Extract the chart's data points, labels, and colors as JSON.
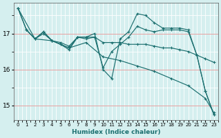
{
  "xlabel": "Humidex (Indice chaleur)",
  "bg_color": "#d5efef",
  "grid_color_major": "#f0c8c8",
  "grid_color_minor": "#ffffff",
  "line_color": "#1a6e6e",
  "xlim": [
    -0.5,
    23.5
  ],
  "ylim": [
    14.6,
    17.85
  ],
  "yticks": [
    15,
    16,
    17
  ],
  "xticks": [
    0,
    1,
    2,
    3,
    4,
    5,
    6,
    7,
    8,
    9,
    10,
    11,
    12,
    13,
    14,
    15,
    16,
    17,
    18,
    19,
    20,
    21,
    22,
    23
  ],
  "lines": [
    {
      "x": [
        0,
        1,
        2,
        3,
        4,
        5,
        6,
        7,
        8,
        9,
        10,
        11,
        12,
        13,
        14,
        15,
        16,
        17,
        18,
        19,
        20,
        21,
        22,
        23
      ],
      "y": [
        17.7,
        17.1,
        16.85,
        17.05,
        16.8,
        16.7,
        16.6,
        16.9,
        16.9,
        17.0,
        16.0,
        15.75,
        16.85,
        17.05,
        17.55,
        17.5,
        17.3,
        17.15,
        17.15,
        17.15,
        17.1,
        16.4,
        15.4,
        14.75
      ]
    },
    {
      "x": [
        0,
        1,
        2,
        3,
        4,
        5,
        6,
        7,
        8,
        9,
        10,
        11,
        12,
        13,
        14,
        15,
        16,
        17,
        18,
        19,
        20,
        21,
        22,
        23
      ],
      "y": [
        17.7,
        17.1,
        16.85,
        17.05,
        16.8,
        16.75,
        16.65,
        16.9,
        16.9,
        16.9,
        16.75,
        16.75,
        16.75,
        16.7,
        16.7,
        16.7,
        16.65,
        16.6,
        16.6,
        16.55,
        16.5,
        16.4,
        16.3,
        16.2
      ]
    },
    {
      "x": [
        1,
        2,
        3,
        4,
        5,
        6,
        7,
        8,
        9,
        10,
        11,
        12,
        13,
        14,
        15,
        16,
        17,
        18,
        19,
        20,
        21,
        22,
        23
      ],
      "y": [
        17.1,
        16.85,
        17.0,
        16.8,
        16.7,
        16.55,
        16.9,
        16.85,
        16.9,
        16.05,
        16.5,
        16.7,
        16.9,
        17.2,
        17.1,
        17.05,
        17.1,
        17.1,
        17.1,
        17.05,
        16.4,
        15.4,
        14.75
      ]
    },
    {
      "x": [
        0,
        2,
        4,
        6,
        8,
        10,
        12,
        14,
        16,
        18,
        20,
        22,
        23
      ],
      "y": [
        17.7,
        16.85,
        16.8,
        16.6,
        16.75,
        16.35,
        16.25,
        16.1,
        15.95,
        15.75,
        15.55,
        15.2,
        14.8
      ]
    }
  ]
}
